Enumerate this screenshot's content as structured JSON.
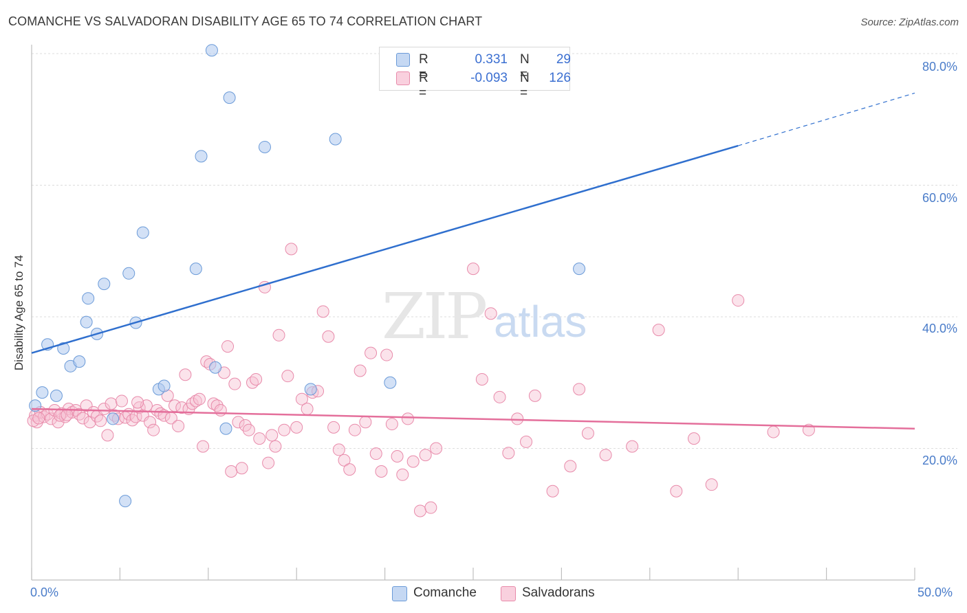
{
  "title": "COMANCHE VS SALVADORAN DISABILITY AGE 65 TO 74 CORRELATION CHART",
  "source": "Source: ZipAtlas.com",
  "watermark": {
    "zip": "ZIP",
    "atlas": "atlas"
  },
  "legend_top": {
    "rows": [
      {
        "r_label": "R =",
        "r_value": "0.331",
        "n_label": "N =",
        "n_value": "29"
      },
      {
        "r_label": "R =",
        "r_value": "-0.093",
        "n_label": "N =",
        "n_value": "126"
      }
    ]
  },
  "legend_bottom": {
    "comanche": "Comanche",
    "salvadorans": "Salvadorans"
  },
  "axis": {
    "ylabel": "Disability Age 65 to 74",
    "yticks": [
      "80.0%",
      "60.0%",
      "40.0%",
      "20.0%"
    ],
    "xtick_left": "0.0%",
    "xtick_right": "50.0%"
  },
  "colors": {
    "comanche_fill": "#aec8ef",
    "comanche_stroke": "#6a9ad8",
    "comanche_line": "#2f6fce",
    "salvadoran_fill": "#f6c0d2",
    "salvadoran_stroke": "#e88aaa",
    "salvadoran_line": "#e46f9b",
    "tick_text": "#4a7cc9",
    "grid": "#dcdcdc"
  },
  "chart_data": {
    "type": "scatter",
    "xlim": [
      0,
      50
    ],
    "ylim": [
      0,
      82
    ],
    "yticks": [
      20,
      40,
      60,
      80
    ],
    "grid": true,
    "legend_position": "top-center",
    "series": [
      {
        "name": "Comanche",
        "r": 0.331,
        "n": 29,
        "trend": {
          "x0": 0,
          "y0": 34.5,
          "x1": 40,
          "y1": 66.0,
          "dash_to_x": 50,
          "dash_to_y": 74.0
        },
        "points": [
          [
            0.2,
            26.5
          ],
          [
            0.6,
            28.5
          ],
          [
            0.9,
            35.8
          ],
          [
            1.4,
            28.0
          ],
          [
            1.8,
            35.2
          ],
          [
            2.2,
            32.5
          ],
          [
            2.7,
            33.2
          ],
          [
            3.2,
            42.8
          ],
          [
            3.1,
            39.2
          ],
          [
            3.7,
            37.4
          ],
          [
            4.1,
            45.0
          ],
          [
            4.6,
            24.5
          ],
          [
            5.3,
            12.0
          ],
          [
            5.5,
            46.6
          ],
          [
            5.9,
            39.1
          ],
          [
            6.3,
            52.8
          ],
          [
            7.2,
            29.0
          ],
          [
            7.5,
            29.5
          ],
          [
            9.3,
            47.3
          ],
          [
            9.6,
            64.4
          ],
          [
            10.2,
            80.5
          ],
          [
            10.4,
            32.3
          ],
          [
            11.0,
            23.0
          ],
          [
            11.2,
            73.3
          ],
          [
            13.2,
            65.8
          ],
          [
            15.8,
            29.0
          ],
          [
            17.2,
            67.0
          ],
          [
            20.3,
            30.0
          ],
          [
            31.0,
            47.3
          ]
        ]
      },
      {
        "name": "Salvadorans",
        "r": -0.093,
        "n": 126,
        "trend": {
          "x0": 0,
          "y0": 26.0,
          "x1": 50,
          "y1": 23.0
        },
        "points": [
          [
            0.2,
            25.0
          ],
          [
            0.3,
            24.0
          ],
          [
            0.5,
            25.5
          ],
          [
            0.7,
            24.8
          ],
          [
            0.9,
            25.2
          ],
          [
            1.1,
            24.5
          ],
          [
            1.3,
            25.8
          ],
          [
            1.5,
            24.0
          ],
          [
            1.7,
            25.3
          ],
          [
            1.9,
            24.8
          ],
          [
            2.1,
            26.0
          ],
          [
            2.3,
            25.5
          ],
          [
            2.5,
            25.8
          ],
          [
            2.7,
            25.2
          ],
          [
            2.9,
            24.6
          ],
          [
            3.1,
            26.5
          ],
          [
            3.3,
            24.0
          ],
          [
            3.5,
            25.5
          ],
          [
            3.7,
            24.9
          ],
          [
            3.9,
            24.2
          ],
          [
            4.1,
            26.0
          ],
          [
            4.3,
            22.0
          ],
          [
            4.5,
            26.8
          ],
          [
            4.7,
            25.0
          ],
          [
            4.9,
            24.5
          ],
          [
            5.1,
            27.2
          ],
          [
            5.3,
            24.7
          ],
          [
            5.5,
            25.2
          ],
          [
            5.7,
            24.3
          ],
          [
            5.9,
            24.8
          ],
          [
            6.1,
            26.2
          ],
          [
            6.3,
            25.0
          ],
          [
            6.5,
            26.5
          ],
          [
            6.7,
            24.0
          ],
          [
            6.9,
            22.8
          ],
          [
            7.1,
            25.8
          ],
          [
            7.3,
            25.3
          ],
          [
            7.5,
            25.0
          ],
          [
            7.7,
            28.0
          ],
          [
            7.9,
            24.6
          ],
          [
            8.1,
            26.5
          ],
          [
            8.3,
            23.4
          ],
          [
            8.5,
            26.2
          ],
          [
            8.7,
            31.2
          ],
          [
            8.9,
            26.0
          ],
          [
            9.1,
            26.8
          ],
          [
            9.3,
            27.2
          ],
          [
            9.5,
            27.5
          ],
          [
            9.7,
            20.3
          ],
          [
            9.9,
            33.2
          ],
          [
            10.1,
            32.8
          ],
          [
            10.3,
            26.8
          ],
          [
            10.5,
            26.5
          ],
          [
            10.7,
            25.8
          ],
          [
            10.9,
            31.5
          ],
          [
            11.1,
            35.5
          ],
          [
            11.3,
            16.5
          ],
          [
            11.5,
            29.8
          ],
          [
            11.7,
            24.0
          ],
          [
            11.9,
            17.0
          ],
          [
            12.1,
            23.5
          ],
          [
            12.3,
            22.8
          ],
          [
            12.5,
            30.0
          ],
          [
            12.7,
            30.5
          ],
          [
            12.9,
            21.5
          ],
          [
            13.2,
            44.5
          ],
          [
            13.4,
            17.8
          ],
          [
            13.6,
            22.0
          ],
          [
            13.8,
            20.3
          ],
          [
            14.0,
            37.2
          ],
          [
            14.3,
            22.8
          ],
          [
            14.5,
            31.0
          ],
          [
            14.7,
            50.3
          ],
          [
            15.0,
            23.2
          ],
          [
            15.3,
            27.5
          ],
          [
            15.6,
            26.0
          ],
          [
            15.9,
            28.5
          ],
          [
            16.2,
            28.7
          ],
          [
            16.5,
            40.8
          ],
          [
            16.8,
            37.0
          ],
          [
            17.1,
            23.2
          ],
          [
            17.4,
            19.8
          ],
          [
            17.7,
            18.2
          ],
          [
            18.0,
            16.8
          ],
          [
            18.3,
            22.8
          ],
          [
            18.6,
            31.8
          ],
          [
            18.9,
            24.0
          ],
          [
            19.2,
            34.5
          ],
          [
            19.5,
            19.2
          ],
          [
            19.8,
            16.5
          ],
          [
            20.1,
            34.2
          ],
          [
            20.4,
            23.7
          ],
          [
            20.7,
            18.8
          ],
          [
            21.0,
            16.0
          ],
          [
            21.3,
            24.5
          ],
          [
            21.6,
            18.0
          ],
          [
            22.0,
            10.5
          ],
          [
            22.3,
            19.0
          ],
          [
            22.6,
            11.0
          ],
          [
            22.9,
            20.0
          ],
          [
            25.0,
            47.3
          ],
          [
            25.5,
            30.5
          ],
          [
            26.0,
            40.5
          ],
          [
            26.5,
            27.8
          ],
          [
            27.0,
            19.3
          ],
          [
            27.5,
            24.5
          ],
          [
            28.0,
            21.0
          ],
          [
            28.5,
            28.0
          ],
          [
            29.5,
            13.5
          ],
          [
            30.5,
            17.3
          ],
          [
            31.0,
            29.0
          ],
          [
            31.5,
            22.3
          ],
          [
            32.5,
            19.0
          ],
          [
            34.0,
            20.3
          ],
          [
            35.5,
            38.0
          ],
          [
            36.5,
            13.5
          ],
          [
            37.5,
            21.5
          ],
          [
            38.5,
            14.5
          ],
          [
            40.0,
            42.5
          ],
          [
            42.0,
            22.5
          ],
          [
            44.0,
            22.8
          ],
          [
            0.1,
            24.2
          ],
          [
            0.4,
            24.6
          ],
          [
            1.6,
            25.0
          ],
          [
            2.0,
            25.1
          ],
          [
            6.0,
            27.0
          ]
        ]
      }
    ]
  }
}
